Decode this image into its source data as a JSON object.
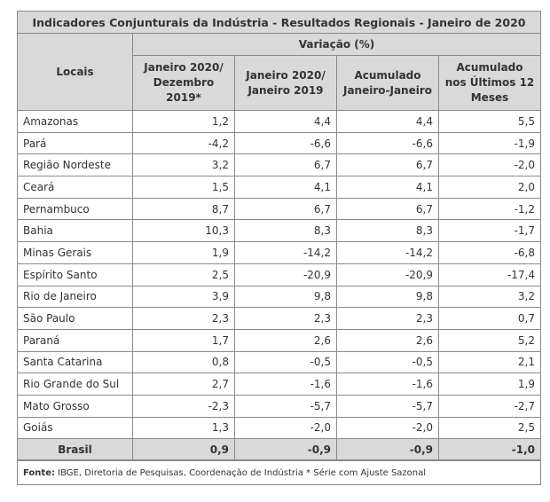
{
  "title": "Indicadores Conjunturais da Indústria - Resultados Regionais - Janeiro de 2020",
  "header": {
    "locais": "Locais",
    "variacao": "Variação (%)",
    "columns": [
      "Janeiro 2020/ Dezembro 2019*",
      "Janeiro 2020/ Janeiro 2019",
      "Acumulado Janeiro-Janeiro",
      "Acumulado nos Últimos 12 Meses"
    ]
  },
  "rows": [
    {
      "local": "Amazonas",
      "v": [
        "1,2",
        "4,4",
        "4,4",
        "5,5"
      ]
    },
    {
      "local": "Pará",
      "v": [
        "-4,2",
        "-6,6",
        "-6,6",
        "-1,9"
      ]
    },
    {
      "local": "Região Nordeste",
      "v": [
        "3,2",
        "6,7",
        "6,7",
        "-2,0"
      ]
    },
    {
      "local": "Ceará",
      "v": [
        "1,5",
        "4,1",
        "4,1",
        "2,0"
      ]
    },
    {
      "local": "Pernambuco",
      "v": [
        "8,7",
        "6,7",
        "6,7",
        "-1,2"
      ]
    },
    {
      "local": "Bahia",
      "v": [
        "10,3",
        "8,3",
        "8,3",
        "-1,7"
      ]
    },
    {
      "local": "Minas Gerais",
      "v": [
        "1,9",
        "-14,2",
        "-14,2",
        "-6,8"
      ]
    },
    {
      "local": "Espírito Santo",
      "v": [
        "2,5",
        "-20,9",
        "-20,9",
        "-17,4"
      ]
    },
    {
      "local": "Rio de Janeiro",
      "v": [
        "3,9",
        "9,8",
        "9,8",
        "3,2"
      ]
    },
    {
      "local": "São Paulo",
      "v": [
        "2,3",
        "2,3",
        "2,3",
        "0,7"
      ]
    },
    {
      "local": "Paraná",
      "v": [
        "1,7",
        "2,6",
        "2,6",
        "5,2"
      ]
    },
    {
      "local": "Santa Catarina",
      "v": [
        "0,8",
        "-0,5",
        "-0,5",
        "2,1"
      ]
    },
    {
      "local": "Rio Grande do Sul",
      "v": [
        "2,7",
        "-1,6",
        "-1,6",
        "1,9"
      ]
    },
    {
      "local": "Mato Grosso",
      "v": [
        "-2,3",
        "-5,7",
        "-5,7",
        "-2,7"
      ]
    },
    {
      "local": "Goiás",
      "v": [
        "1,3",
        "-2,0",
        "-2,0",
        "2,5"
      ]
    }
  ],
  "total": {
    "local": "Brasil",
    "v": [
      "0,9",
      "-0,9",
      "-0,9",
      "-1,0"
    ]
  },
  "source": {
    "label": "Fonte:",
    "text": " IBGE, Diretoria de Pesquisas, Coordenação de Indústria * Série com Ajuste Sazonal"
  }
}
